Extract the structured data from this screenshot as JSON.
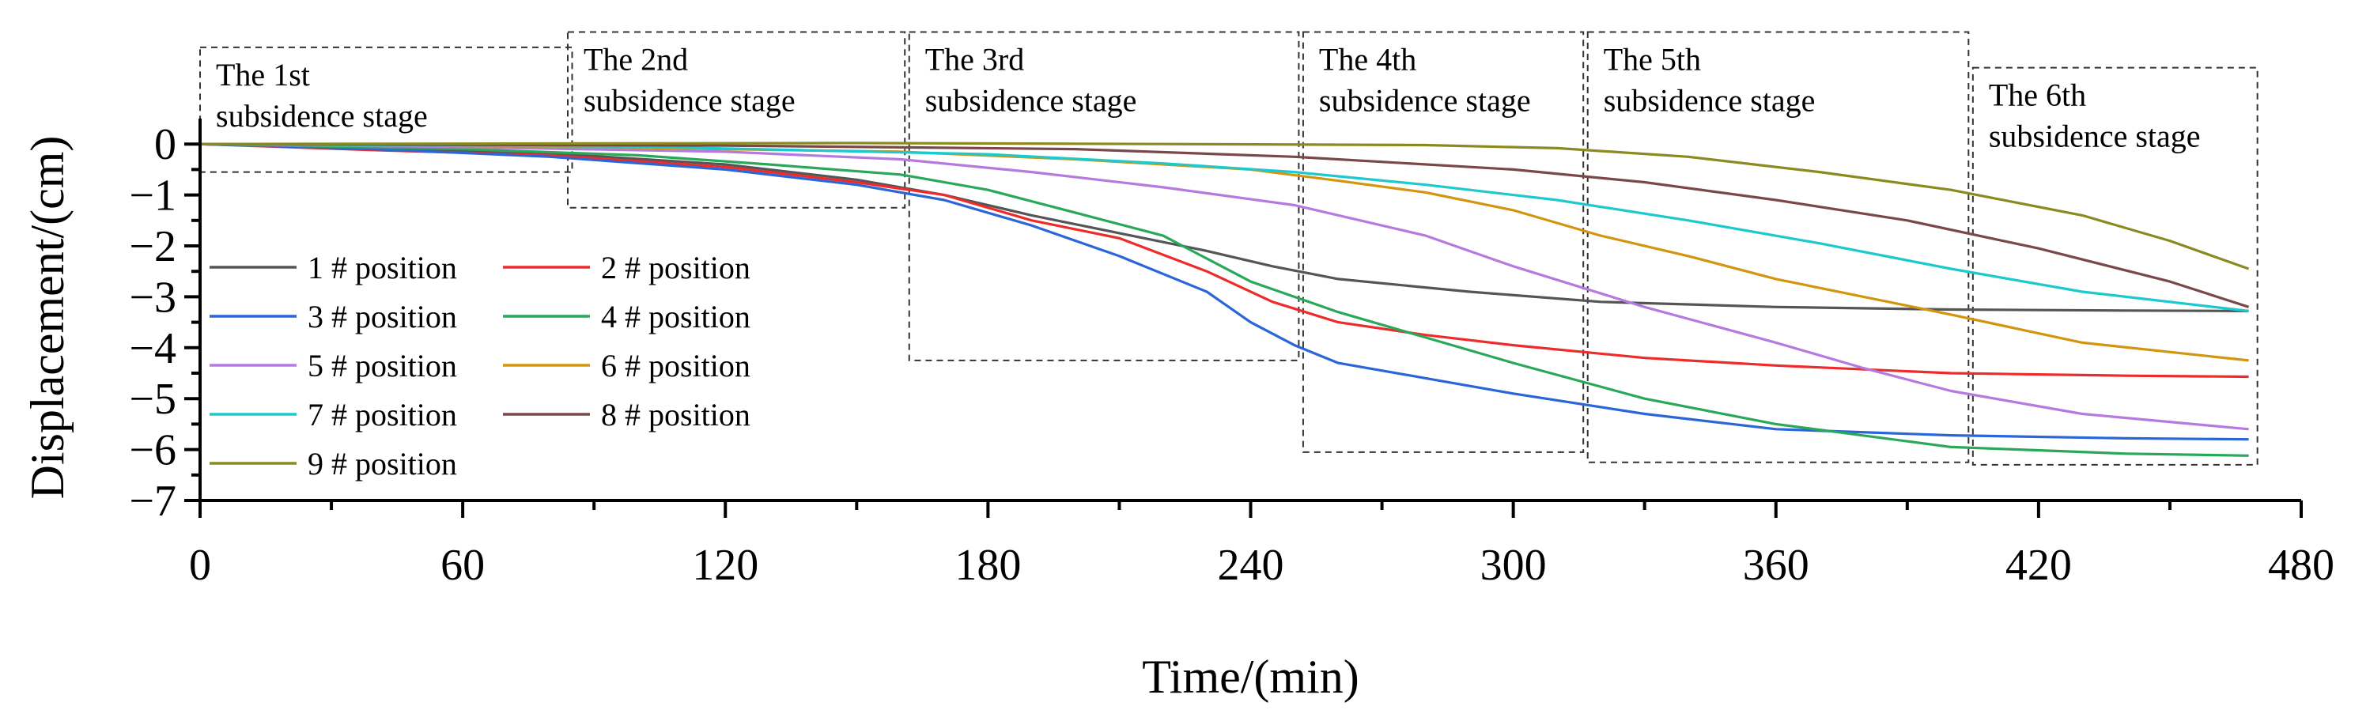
{
  "chart_data": {
    "type": "line",
    "xlabel": "Time/(min)",
    "ylabel": "Displacement/(cm)",
    "xlim": [
      0,
      480
    ],
    "ylim": [
      -7,
      0.5
    ],
    "xticks": [
      0,
      60,
      120,
      180,
      240,
      300,
      360,
      420,
      480
    ],
    "xtick_labels": [
      "0",
      "60",
      "120",
      "180",
      "240",
      "300",
      "360",
      "420",
      "480"
    ],
    "yticks": [
      0,
      -1,
      -2,
      -3,
      -4,
      -5,
      -6,
      -7
    ],
    "ytick_labels": [
      "0",
      "−1",
      "−2",
      "−3",
      "−4",
      "−5",
      "−6",
      "−7"
    ],
    "legend": {
      "placement": "center-left",
      "columns": 2
    },
    "stages": [
      {
        "label_line1": "The 1st",
        "label_line2": "subsidence stage",
        "x_range": [
          0,
          85
        ],
        "y_range": [
          -0.55,
          1.9
        ]
      },
      {
        "label_line1": "The 2nd",
        "label_line2": "subsidence stage",
        "x_range": [
          84,
          161
        ],
        "y_range": [
          -1.25,
          2.2
        ]
      },
      {
        "label_line1": "The 3rd",
        "label_line2": "subsidence stage",
        "x_range": [
          162,
          251
        ],
        "y_range": [
          -4.25,
          2.2
        ]
      },
      {
        "label_line1": "The 4th",
        "label_line2": "subsidence stage",
        "x_range": [
          252,
          316
        ],
        "y_range": [
          -6.05,
          2.2
        ]
      },
      {
        "label_line1": "The 5th",
        "label_line2": "subsidence stage",
        "x_range": [
          317,
          404
        ],
        "y_range": [
          -6.25,
          2.2
        ]
      },
      {
        "label_line1": "The 6th",
        "label_line2": "subsidence stage",
        "x_range": [
          405,
          470
        ],
        "y_range": [
          -6.3,
          1.5
        ]
      }
    ],
    "series": [
      {
        "name": "1 # position",
        "color": "#555555",
        "x": [
          0,
          40,
          80,
          120,
          150,
          170,
          190,
          210,
          230,
          245,
          260,
          290,
          320,
          360,
          400,
          440,
          468
        ],
        "y": [
          0,
          -0.08,
          -0.18,
          -0.4,
          -0.7,
          -1.0,
          -1.4,
          -1.75,
          -2.1,
          -2.4,
          -2.65,
          -2.9,
          -3.1,
          -3.2,
          -3.25,
          -3.27,
          -3.28
        ]
      },
      {
        "name": "2 # position",
        "color": "#ee2b2b",
        "x": [
          0,
          40,
          80,
          120,
          150,
          170,
          190,
          210,
          230,
          245,
          260,
          280,
          300,
          330,
          360,
          400,
          440,
          468
        ],
        "y": [
          0,
          -0.12,
          -0.22,
          -0.45,
          -0.75,
          -1.0,
          -1.5,
          -1.85,
          -2.5,
          -3.1,
          -3.5,
          -3.75,
          -3.95,
          -4.2,
          -4.35,
          -4.5,
          -4.55,
          -4.57
        ]
      },
      {
        "name": "3 # position",
        "color": "#2a66d8",
        "x": [
          0,
          40,
          80,
          120,
          150,
          170,
          190,
          210,
          230,
          240,
          250,
          260,
          280,
          300,
          330,
          360,
          400,
          440,
          468
        ],
        "y": [
          0,
          -0.1,
          -0.25,
          -0.5,
          -0.8,
          -1.1,
          -1.6,
          -2.2,
          -2.9,
          -3.5,
          -3.95,
          -4.3,
          -4.6,
          -4.9,
          -5.3,
          -5.6,
          -5.72,
          -5.78,
          -5.8
        ]
      },
      {
        "name": "4 # position",
        "color": "#2aa85a",
        "x": [
          0,
          60,
          100,
          130,
          160,
          180,
          200,
          220,
          240,
          260,
          280,
          300,
          330,
          360,
          400,
          440,
          468
        ],
        "y": [
          0,
          -0.1,
          -0.22,
          -0.4,
          -0.6,
          -0.9,
          -1.35,
          -1.8,
          -2.7,
          -3.3,
          -3.8,
          -4.3,
          -5.0,
          -5.5,
          -5.95,
          -6.08,
          -6.12
        ]
      },
      {
        "name": "5 # position",
        "color": "#b47ae0",
        "x": [
          0,
          60,
          120,
          160,
          190,
          220,
          250,
          280,
          300,
          330,
          360,
          380,
          400,
          430,
          468
        ],
        "y": [
          0,
          -0.06,
          -0.15,
          -0.3,
          -0.55,
          -0.85,
          -1.2,
          -1.8,
          -2.4,
          -3.2,
          -3.9,
          -4.4,
          -4.85,
          -5.3,
          -5.6
        ]
      },
      {
        "name": "6 # position",
        "color": "#d4950e",
        "x": [
          0,
          80,
          160,
          200,
          240,
          260,
          280,
          300,
          320,
          340,
          360,
          380,
          400,
          430,
          468
        ],
        "y": [
          0,
          -0.05,
          -0.15,
          -0.3,
          -0.5,
          -0.72,
          -0.95,
          -1.3,
          -1.8,
          -2.2,
          -2.65,
          -3.0,
          -3.35,
          -3.9,
          -4.25
        ]
      },
      {
        "name": "7 # position",
        "color": "#1cc9cd",
        "x": [
          0,
          100,
          180,
          220,
          250,
          280,
          310,
          340,
          370,
          400,
          430,
          468
        ],
        "y": [
          0,
          -0.05,
          -0.2,
          -0.38,
          -0.55,
          -0.8,
          -1.1,
          -1.5,
          -1.95,
          -2.45,
          -2.9,
          -3.28
        ]
      },
      {
        "name": "8 # position",
        "color": "#7a4848",
        "x": [
          0,
          120,
          200,
          250,
          300,
          330,
          360,
          390,
          420,
          450,
          468
        ],
        "y": [
          0,
          -0.03,
          -0.1,
          -0.25,
          -0.5,
          -0.75,
          -1.1,
          -1.5,
          -2.05,
          -2.7,
          -3.2
        ]
      },
      {
        "name": "9 # position",
        "color": "#8a8a20",
        "x": [
          0,
          150,
          220,
          280,
          310,
          340,
          370,
          400,
          430,
          450,
          468
        ],
        "y": [
          0,
          0.02,
          0.0,
          -0.02,
          -0.08,
          -0.25,
          -0.55,
          -0.9,
          -1.4,
          -1.9,
          -2.45
        ]
      }
    ]
  }
}
